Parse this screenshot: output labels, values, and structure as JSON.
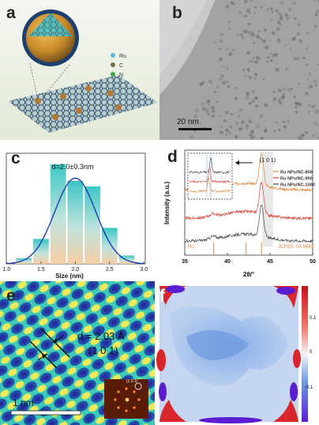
{
  "figure": {
    "panels": {
      "a": {
        "label": "a",
        "legend": [
          "Ru",
          "C",
          "N"
        ],
        "legend_colors": [
          "#5fb8d8",
          "#7a6a4a",
          "#3aa84a"
        ]
      },
      "b": {
        "label": "b",
        "scale_bar": "20 nm"
      },
      "c": {
        "label": "c"
      },
      "d": {
        "label": "d"
      },
      "e": {
        "label": "e",
        "d_spacing": "d = 2.03 Å",
        "plane": "(1 0 1)",
        "scale_bar": "1 nm",
        "fft_label": "(1 0 1)"
      },
      "f": {
        "label": "f",
        "colorbar_ticks": [
          "0.1",
          "0",
          "-0.1"
        ]
      }
    }
  },
  "chart_data": [
    {
      "panel": "c",
      "type": "bar",
      "annotation": "d=2.0±0.3nm",
      "xlabel": "Size (nm)",
      "ylabel": "",
      "xlim": [
        1.0,
        3.0
      ],
      "xticks": [
        "1.0",
        "1.5",
        "2.0",
        "2.5",
        "3.0"
      ],
      "bin_centers": [
        1.25,
        1.5,
        1.75,
        2.0,
        2.25,
        2.5,
        2.75
      ],
      "values": [
        2,
        9,
        36,
        30,
        28,
        13,
        3
      ],
      "ylim": [
        0,
        40
      ],
      "fit": {
        "type": "gaussian",
        "mean": 2.0,
        "sigma": 0.3,
        "peak": 31
      }
    },
    {
      "panel": "d",
      "type": "line",
      "xlabel": "2θ/°",
      "ylabel": "Intensity (a.u.)",
      "xlim": [
        35,
        50
      ],
      "xticks": [
        "35",
        "40",
        "45",
        "50"
      ],
      "peak_label": "(1 0 1)",
      "series": [
        {
          "name": "Ru NPs/NC-800",
          "color": "#e08a3c",
          "offset": 1.15
        },
        {
          "name": "Ru NPs/NC-900",
          "color": "#d8443a",
          "offset": 0.65
        },
        {
          "name": "Ru NPs/NC-1000",
          "color": "#4a4a4a",
          "offset": 0.25
        }
      ],
      "reference": {
        "name": "Ru",
        "card": "JCPDS: 06-0663",
        "lines": [
          38.4,
          42.2,
          44.0
        ],
        "color": "#e08a3c"
      }
    }
  ]
}
